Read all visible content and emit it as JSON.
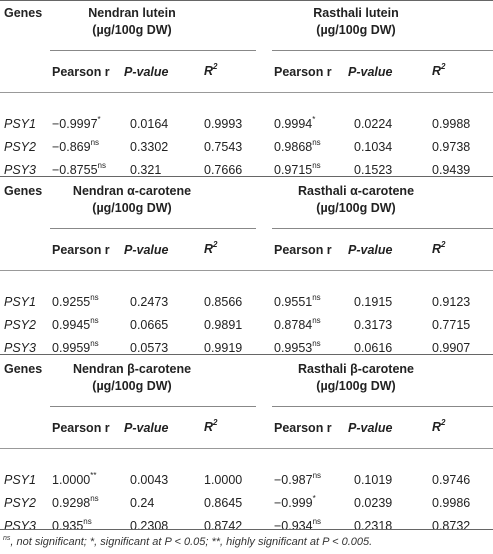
{
  "blocks": [
    {
      "genes_label": "Genes",
      "left_title": [
        "Nendran lutein",
        "(µg/100g DW)"
      ],
      "right_title": [
        "Rasthali lutein",
        "(µg/100g DW)"
      ],
      "columns": [
        "Pearson r",
        "P-value",
        "R2"
      ],
      "rows": [
        {
          "gene": "PSY1",
          "l_r": "−0.9997",
          "l_sup": "*",
          "l_p": "0.0164",
          "l_r2": "0.9993",
          "r_r": "0.9994",
          "r_sup": "*",
          "r_p": "0.0224",
          "r_r2": "0.9988"
        },
        {
          "gene": "PSY2",
          "l_r": "−0.869",
          "l_sup": "ns",
          "l_p": "0.3302",
          "l_r2": "0.7543",
          "r_r": "0.9868",
          "r_sup": "ns",
          "r_p": "0.1034",
          "r_r2": "0.9738"
        },
        {
          "gene": "PSY3",
          "l_r": "−0.8755",
          "l_sup": "ns",
          "l_p": "0.321",
          "l_r2": "0.7666",
          "r_r": "0.9715",
          "r_sup": "ns",
          "r_p": "0.1523",
          "r_r2": "0.9439"
        }
      ]
    },
    {
      "genes_label": "Genes",
      "left_title": [
        "Nendran α-carotene",
        "(µg/100g DW)"
      ],
      "right_title": [
        "Rasthali α-carotene",
        "(µg/100g DW)"
      ],
      "columns": [
        "Pearson r",
        "P-value",
        "R2"
      ],
      "rows": [
        {
          "gene": "PSY1",
          "l_r": "0.9255",
          "l_sup": "ns",
          "l_p": "0.2473",
          "l_r2": "0.8566",
          "r_r": "0.9551",
          "r_sup": "ns",
          "r_p": "0.1915",
          "r_r2": "0.9123"
        },
        {
          "gene": "PSY2",
          "l_r": "0.9945",
          "l_sup": "ns",
          "l_p": "0.0665",
          "l_r2": "0.9891",
          "r_r": "0.8784",
          "r_sup": "ns",
          "r_p": "0.3173",
          "r_r2": "0.7715"
        },
        {
          "gene": "PSY3",
          "l_r": "0.9959",
          "l_sup": "ns",
          "l_p": "0.0573",
          "l_r2": "0.9919",
          "r_r": "0.9953",
          "r_sup": "ns",
          "r_p": "0.0616",
          "r_r2": "0.9907"
        }
      ]
    },
    {
      "genes_label": "Genes",
      "left_title": [
        "Nendran β-carotene",
        "(µg/100g DW)"
      ],
      "right_title": [
        "Rasthali β-carotene",
        "(µg/100g DW)"
      ],
      "columns": [
        "Pearson r",
        "P-value",
        "R2"
      ],
      "rows": [
        {
          "gene": "PSY1",
          "l_r": "1.0000",
          "l_sup": "**",
          "l_p": "0.0043",
          "l_r2": "1.0000",
          "r_r": "−0.987",
          "r_sup": "ns",
          "r_p": "0.1019",
          "r_r2": "0.9746"
        },
        {
          "gene": "PSY2",
          "l_r": "0.9298",
          "l_sup": "ns",
          "l_p": "0.24",
          "l_r2": "0.8645",
          "r_r": "−0.999",
          "r_sup": "*",
          "r_p": "0.0239",
          "r_r2": "0.9986"
        },
        {
          "gene": "PSY3",
          "l_r": "0.935",
          "l_sup": "ns",
          "l_p": "0.2308",
          "l_r2": "0.8742",
          "r_r": "−0.934",
          "r_sup": "ns",
          "r_p": "0.2318",
          "r_r2": "0.8732"
        }
      ]
    }
  ],
  "footnote": {
    "ns_mark": "ns",
    "text": ", not significant; *, significant at P < 0.05; **, highly significant at P < 0.005."
  }
}
